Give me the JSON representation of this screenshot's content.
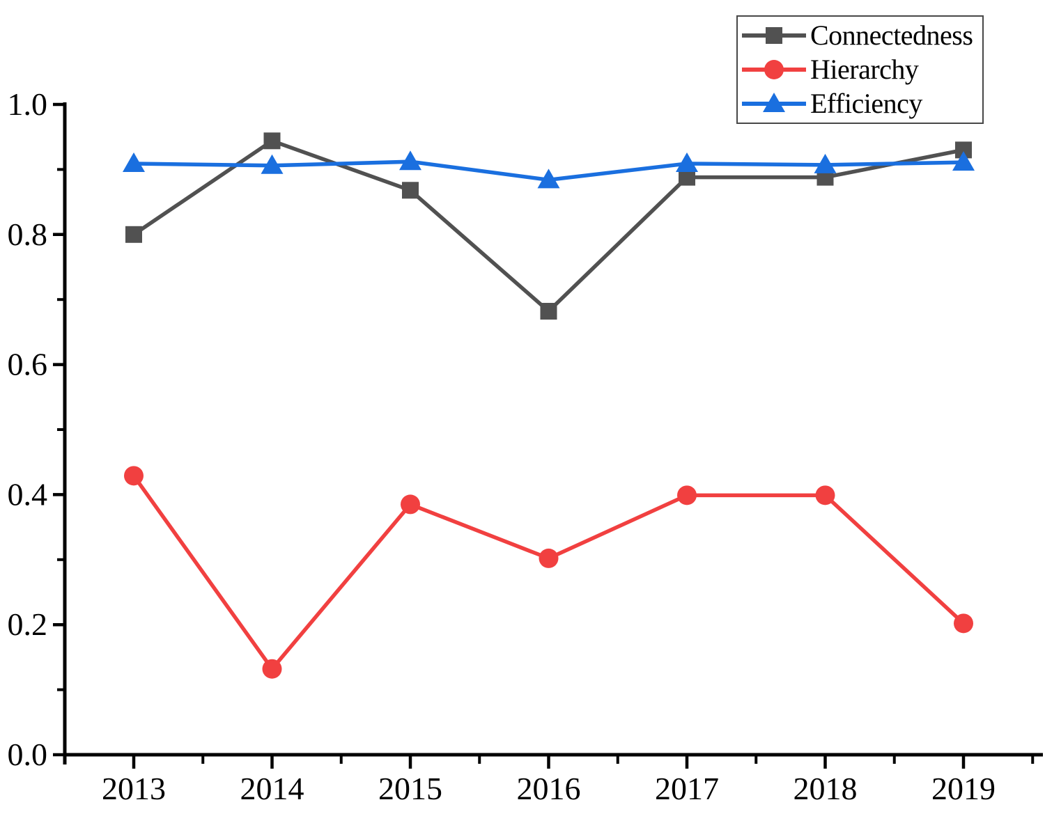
{
  "figure": {
    "background": "#ffffff",
    "axis_color": "#000000",
    "text_color": "#000000",
    "legend_border_color": "#474747"
  },
  "chart_data": {
    "type": "line",
    "title": "",
    "xlabel": "",
    "ylabel": "",
    "x": [
      2013,
      2014,
      2015,
      2016,
      2017,
      2018,
      2019
    ],
    "xtick_labels": [
      "2013",
      "2014",
      "2015",
      "2016",
      "2017",
      "2018",
      "2019"
    ],
    "ylim": [
      0.0,
      1.0
    ],
    "yticks": [
      0.0,
      0.2,
      0.4,
      0.6,
      0.8,
      1.0
    ],
    "ytick_labels": [
      "0.0",
      "0.2",
      "0.4",
      "0.6",
      "0.8",
      "1.0"
    ],
    "minor_ticks": true,
    "grid": false,
    "legend_position": "top-right",
    "series": [
      {
        "name": "Connectedness",
        "color": "#515151",
        "marker": "square",
        "values": [
          0.8,
          0.944,
          0.868,
          0.682,
          0.888,
          0.888,
          0.93
        ]
      },
      {
        "name": "Hierarchy",
        "color": "#F14040",
        "marker": "circle",
        "values": [
          0.429,
          0.132,
          0.385,
          0.302,
          0.399,
          0.399,
          0.202
        ]
      },
      {
        "name": "Efficiency",
        "color": "#1A6FDF",
        "marker": "triangle",
        "values": [
          0.909,
          0.906,
          0.912,
          0.884,
          0.909,
          0.907,
          0.911
        ]
      }
    ]
  }
}
